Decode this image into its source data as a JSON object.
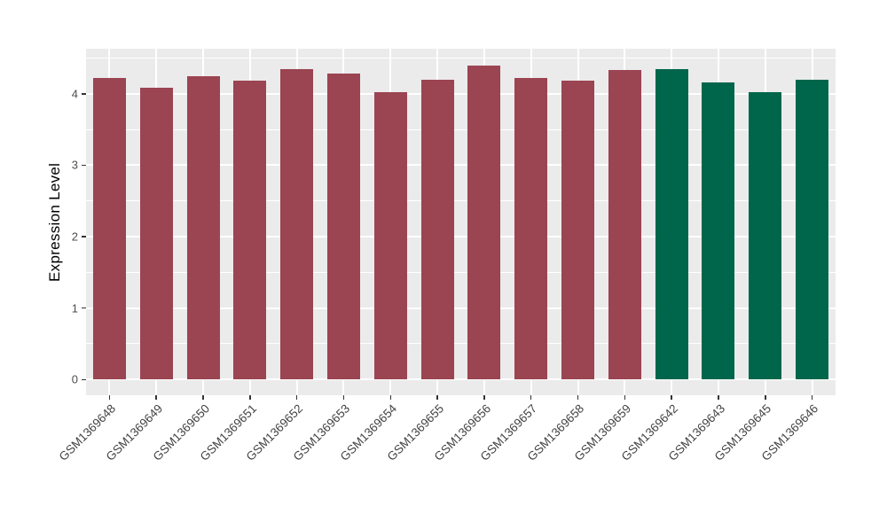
{
  "figure": {
    "background_color": "#FFFFFF",
    "panel_background_color": "#EBEBEB",
    "gridline_color": "#FFFFFF",
    "axis_text_color": "#4D4D4D",
    "tick_mark_color": "#333333"
  },
  "chart_data": {
    "type": "bar",
    "title": "",
    "xlabel": "",
    "ylabel": "Expression Level",
    "categories": [
      "GSM1369648",
      "GSM1369649",
      "GSM1369650",
      "GSM1369651",
      "GSM1369652",
      "GSM1369653",
      "GSM1369654",
      "GSM1369655",
      "GSM1369656",
      "GSM1369657",
      "GSM1369658",
      "GSM1369659",
      "GSM1369642",
      "GSM1369643",
      "GSM1369645",
      "GSM1369646"
    ],
    "values": [
      4.22,
      4.08,
      4.24,
      4.18,
      4.34,
      4.28,
      4.02,
      4.2,
      4.39,
      4.22,
      4.18,
      4.33,
      4.34,
      4.16,
      4.02,
      4.19
    ],
    "groups": [
      0,
      0,
      0,
      0,
      0,
      0,
      0,
      0,
      0,
      0,
      0,
      0,
      1,
      1,
      1,
      1
    ],
    "group_colors": [
      "#9B4452",
      "#00664B"
    ],
    "yticks": [
      0,
      1,
      2,
      3,
      4
    ],
    "ylim": [
      0,
      4.63
    ],
    "grid": "major and minor horizontal white lines, vertical white lines at category centers",
    "legend_position": "none",
    "x_tick_label_angle": 45
  }
}
